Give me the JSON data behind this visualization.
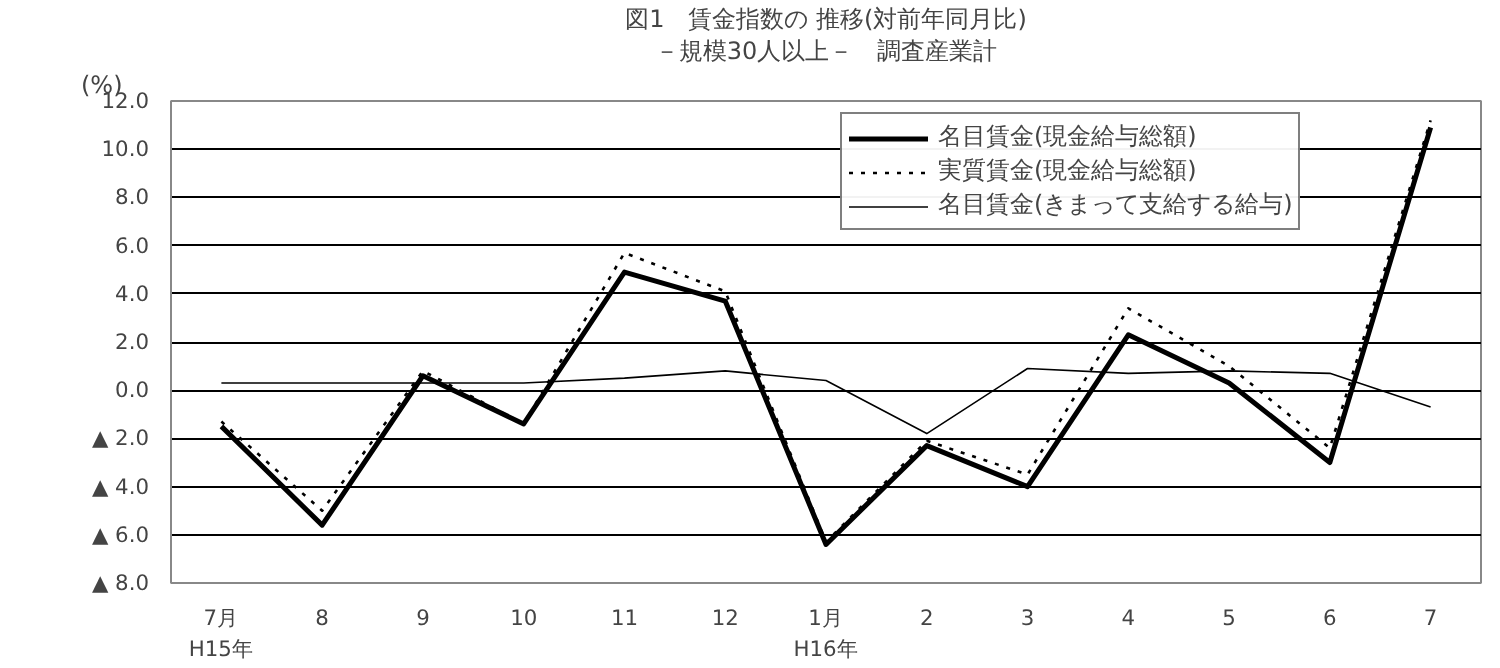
{
  "chart_data": {
    "type": "line",
    "title": "図1　賃金指数の 推移(対前年同月比)",
    "subtitle": "－規模30人以上－　調査産業計",
    "ylabel": "(%)",
    "categories": [
      "7月\nH15年",
      "8",
      "9",
      "10",
      "11",
      "12",
      "1月\nH16年",
      "2",
      "3",
      "4",
      "5",
      "6",
      "7"
    ],
    "series": [
      {
        "name": "名目賃金(現金給与総額)",
        "color": "#000000",
        "line_style": "solid",
        "values": [
          -1.5,
          -5.6,
          0.6,
          -1.4,
          4.9,
          3.7,
          -6.4,
          -2.3,
          -4.0,
          2.3,
          0.3,
          -3.0,
          10.9
        ]
      },
      {
        "name": "実質賃金(現金給与総額)",
        "color": "#000000",
        "line_style": "dotted",
        "values": [
          -1.3,
          -5.0,
          0.8,
          -1.4,
          5.7,
          4.1,
          -6.3,
          -2.1,
          -3.5,
          3.4,
          1.0,
          -2.4,
          11.2
        ]
      },
      {
        "name": "名目賃金(きまって支給する給与)",
        "color": "#000000",
        "line_style": "solid",
        "values": [
          0.3,
          0.3,
          0.3,
          0.3,
          0.5,
          0.8,
          0.4,
          -1.8,
          0.9,
          0.7,
          0.8,
          0.7,
          -0.7
        ]
      }
    ],
    "ylim": [
      -8,
      12
    ],
    "yticks": [
      {
        "value": -8,
        "label": "▲ 8.0"
      },
      {
        "value": -6,
        "label": "▲ 6.0"
      },
      {
        "value": -4,
        "label": "▲ 4.0"
      },
      {
        "value": -2,
        "label": "▲ 2.0"
      },
      {
        "value": 0,
        "label": "0.0"
      },
      {
        "value": 2,
        "label": "2.0"
      },
      {
        "value": 4,
        "label": "4.0"
      },
      {
        "value": 6,
        "label": "6.0"
      },
      {
        "value": 8,
        "label": "8.0"
      },
      {
        "value": 10,
        "label": "10.0"
      },
      {
        "value": 12,
        "label": "12.0"
      }
    ],
    "grid": "y",
    "legend": "top right",
    "marker": "none"
  }
}
